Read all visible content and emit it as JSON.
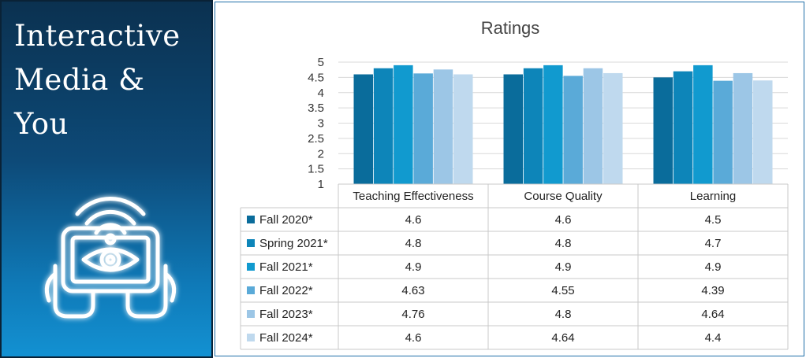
{
  "left_panel": {
    "title_lines": [
      "Interactive",
      "Media &",
      "You"
    ],
    "icon": "eye-tablet-signal-icon",
    "colors": {
      "top": "#0b3150",
      "bottom": "#1391d2",
      "glow": "#7fd4ff"
    }
  },
  "chart_data": {
    "type": "bar",
    "title": "Ratings",
    "categories": [
      "Teaching Effectiveness",
      "Course Quality",
      "Learning"
    ],
    "series": [
      {
        "name": "Fall 2020*",
        "values": [
          4.6,
          4.6,
          4.5
        ],
        "labels": [
          "4.6",
          "4.6",
          "4.5"
        ],
        "color": "#0a6c9b"
      },
      {
        "name": "Spring 2021*",
        "values": [
          4.8,
          4.8,
          4.7
        ],
        "labels": [
          "4.8",
          "4.8",
          "4.7"
        ],
        "color": "#0d85b9"
      },
      {
        "name": "Fall 2021*",
        "values": [
          4.9,
          4.9,
          4.9
        ],
        "labels": [
          "4.9",
          "4.9",
          "4.9"
        ],
        "color": "#119acf"
      },
      {
        "name": "Fall 2022*",
        "values": [
          4.63,
          4.55,
          4.39
        ],
        "labels": [
          "4.63",
          "4.55",
          "4.39"
        ],
        "color": "#5aaad8"
      },
      {
        "name": "Fall 2023*",
        "values": [
          4.76,
          4.8,
          4.64
        ],
        "labels": [
          "4.76",
          "4.8",
          "4.64"
        ],
        "color": "#9cc6e6"
      },
      {
        "name": "Fall 2024*",
        "values": [
          4.6,
          4.64,
          4.4
        ],
        "labels": [
          "4.6",
          "4.64",
          "4.4"
        ],
        "color": "#bfd9ee"
      }
    ],
    "yticks": [
      "5",
      "4.5",
      "4",
      "3.5",
      "3",
      "2.5",
      "2",
      "1.5",
      "1"
    ],
    "ylim": [
      1,
      5
    ],
    "xlabel": "",
    "ylabel": "",
    "grid": true,
    "legend": "data-table"
  }
}
